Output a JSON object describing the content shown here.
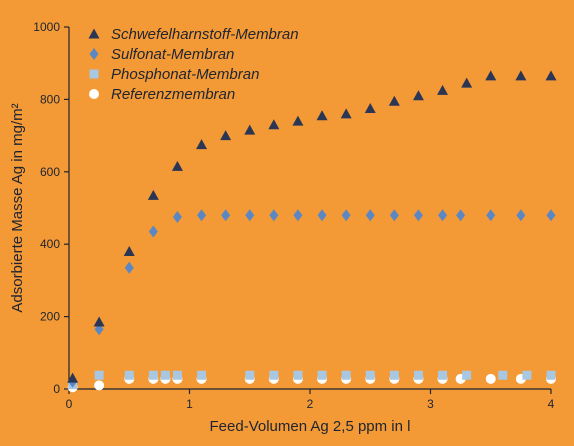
{
  "chart_data": {
    "type": "scatter",
    "title": "",
    "xlabel": "Feed-Volumen Ag 2,5 ppm in l",
    "ylabel": "Adsorbierte Masse Ag in mg/m²",
    "xlim": [
      0,
      4
    ],
    "ylim": [
      0,
      1000
    ],
    "xticks": [
      "0",
      "1",
      "2",
      "3",
      "4"
    ],
    "yticks": [
      "0",
      "200",
      "400",
      "600",
      "800",
      "1000"
    ],
    "grid": false,
    "legend_position": "top-left",
    "background": "#f39a36",
    "series": [
      {
        "name": "Schwefelharnstoff-Membran",
        "marker": "triangle",
        "color": "#2b3654",
        "x": [
          0.03,
          0.25,
          0.5,
          0.7,
          0.9,
          1.1,
          1.3,
          1.5,
          1.7,
          1.9,
          2.1,
          2.3,
          2.5,
          2.7,
          2.9,
          3.1,
          3.3,
          3.5,
          3.75,
          4.0
        ],
        "y": [
          30,
          185,
          380,
          535,
          615,
          675,
          700,
          715,
          730,
          740,
          755,
          760,
          775,
          795,
          810,
          825,
          845,
          865,
          865,
          865
        ]
      },
      {
        "name": "Sulfonat-Membran",
        "marker": "diamond",
        "color": "#5b87c2",
        "x": [
          0.03,
          0.25,
          0.5,
          0.7,
          0.9,
          1.1,
          1.3,
          1.5,
          1.7,
          1.9,
          2.1,
          2.3,
          2.5,
          2.7,
          2.9,
          3.1,
          3.25,
          3.5,
          3.75,
          4.0
        ],
        "y": [
          20,
          165,
          335,
          435,
          475,
          480,
          480,
          480,
          480,
          480,
          480,
          480,
          480,
          480,
          480,
          480,
          480,
          480,
          480,
          480
        ]
      },
      {
        "name": "Phosphonat-Membran",
        "marker": "square",
        "color": "#a8c7e2",
        "x": [
          0.03,
          0.25,
          0.5,
          0.7,
          0.8,
          0.9,
          1.1,
          1.5,
          1.7,
          1.9,
          2.1,
          2.3,
          2.5,
          2.7,
          2.9,
          3.1,
          3.3,
          3.6,
          3.8,
          4.0
        ],
        "y": [
          12,
          38,
          38,
          38,
          38,
          38,
          38,
          38,
          38,
          38,
          38,
          38,
          38,
          38,
          38,
          38,
          38,
          38,
          38,
          38
        ]
      },
      {
        "name": "Referenzmembran",
        "marker": "circle",
        "color": "#ffffff",
        "x": [
          0.03,
          0.25,
          0.5,
          0.7,
          0.8,
          0.9,
          1.1,
          1.5,
          1.7,
          1.9,
          2.1,
          2.3,
          2.5,
          2.7,
          2.9,
          3.1,
          3.25,
          3.5,
          3.75,
          4.0
        ],
        "y": [
          5,
          10,
          28,
          28,
          28,
          28,
          28,
          28,
          28,
          28,
          28,
          28,
          28,
          28,
          28,
          28,
          28,
          28,
          28,
          28
        ]
      }
    ]
  }
}
